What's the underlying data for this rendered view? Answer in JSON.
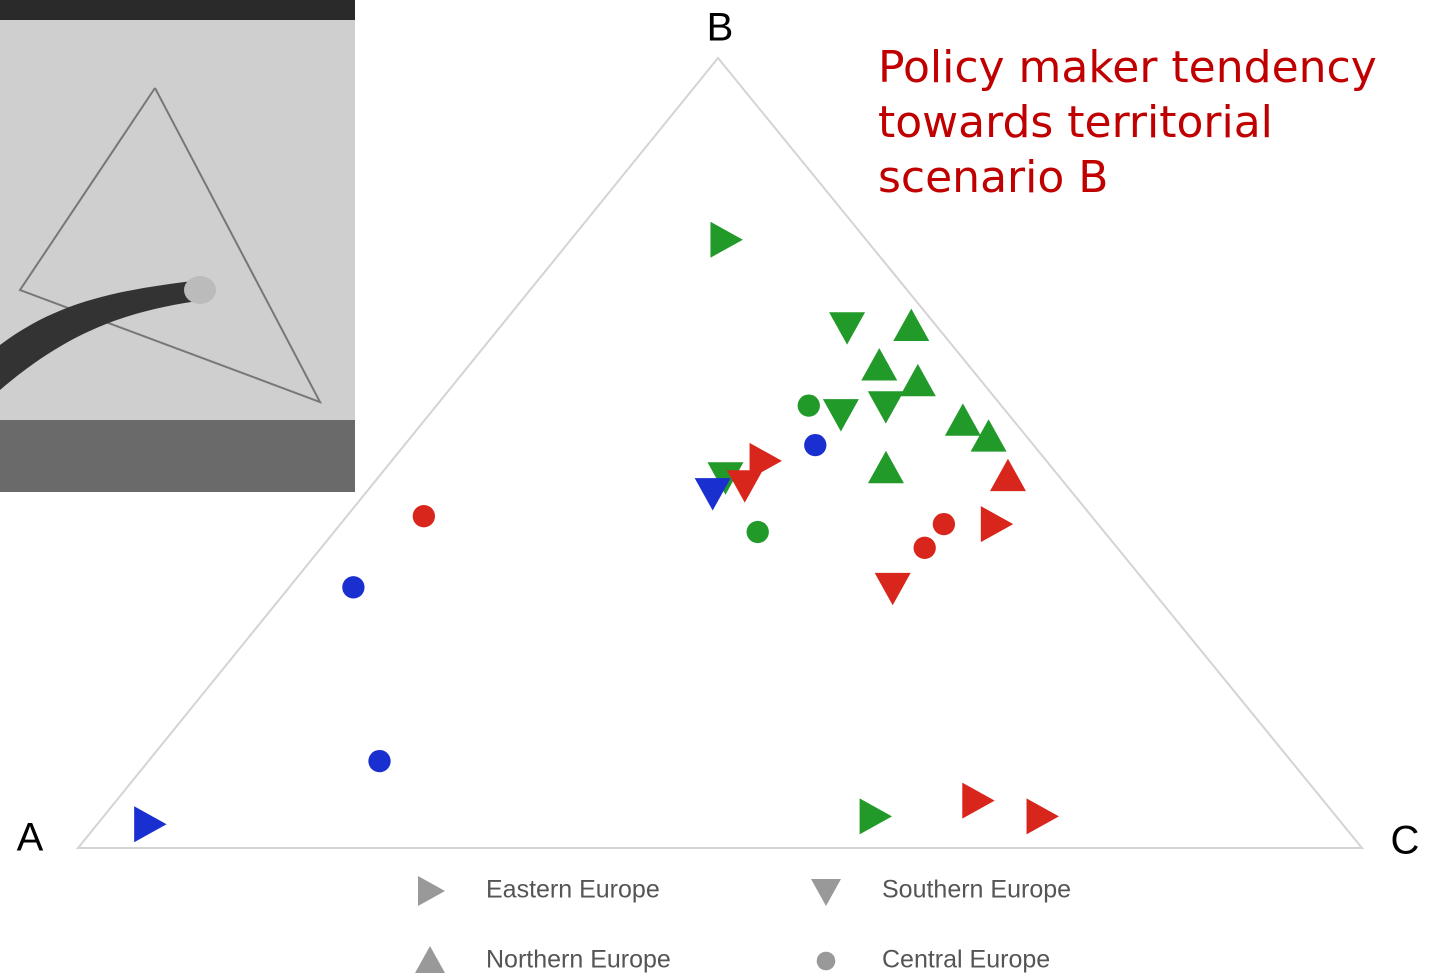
{
  "chart_data": {
    "type": "ternary",
    "corners": {
      "a": "A",
      "b": "B",
      "c": "C"
    },
    "annotation": [
      "Policy maker tendency",
      "towards territorial",
      "scenario B"
    ],
    "legend_color": "#999999",
    "series": [
      {
        "name": "Eastern Europe",
        "marker": "triangle-right",
        "points": [
          {
            "b": 77,
            "c": 12,
            "color": "#219a2a"
          },
          {
            "b": 3,
            "c": 4,
            "color": "#1a2fd0"
          },
          {
            "b": 49,
            "c": 29,
            "color": "#d9261c"
          },
          {
            "b": 41,
            "c": 51,
            "color": "#d9261c"
          },
          {
            "b": 4,
            "c": 60,
            "color": "#219a2a"
          },
          {
            "b": 6,
            "c": 67,
            "color": "#d9261c"
          },
          {
            "b": 4,
            "c": 73,
            "color": "#d9261c"
          }
        ]
      },
      {
        "name": "Southern Europe",
        "marker": "triangle-down",
        "points": [
          {
            "b": 66,
            "c": 27,
            "color": "#219a2a"
          },
          {
            "b": 55,
            "c": 32,
            "color": "#219a2a"
          },
          {
            "b": 56,
            "c": 35,
            "color": "#219a2a"
          },
          {
            "b": 47,
            "c": 27,
            "color": "#219a2a"
          },
          {
            "b": 45,
            "c": 27,
            "color": "#1a2fd0"
          },
          {
            "b": 46,
            "c": 29,
            "color": "#d9261c"
          },
          {
            "b": 33,
            "c": 47,
            "color": "#d9261c"
          }
        ]
      },
      {
        "name": "Northern Europe",
        "marker": "triangle-up",
        "points": [
          {
            "b": 66,
            "c": 32,
            "color": "#219a2a"
          },
          {
            "b": 61,
            "c": 32,
            "color": "#219a2a"
          },
          {
            "b": 59,
            "c": 36,
            "color": "#219a2a"
          },
          {
            "b": 54,
            "c": 42,
            "color": "#219a2a"
          },
          {
            "b": 52,
            "c": 45,
            "color": "#219a2a"
          },
          {
            "b": 48,
            "c": 39,
            "color": "#219a2a"
          },
          {
            "b": 47,
            "c": 49,
            "color": "#d9261c"
          }
        ]
      },
      {
        "name": "Central Europe",
        "marker": "circle",
        "points": [
          {
            "b": 56,
            "c": 29,
            "color": "#219a2a"
          },
          {
            "b": 51,
            "c": 32,
            "color": "#1a2fd0"
          },
          {
            "b": 40,
            "c": 33,
            "color": "#219a2a"
          },
          {
            "b": 42,
            "c": 6,
            "color": "#d9261c"
          },
          {
            "b": 33,
            "c": 5,
            "color": "#1a2fd0"
          },
          {
            "b": 11,
            "c": 18,
            "color": "#1a2fd0"
          },
          {
            "b": 41,
            "c": 47,
            "color": "#d9261c"
          },
          {
            "b": 38,
            "c": 47,
            "color": "#d9261c"
          }
        ]
      }
    ]
  }
}
